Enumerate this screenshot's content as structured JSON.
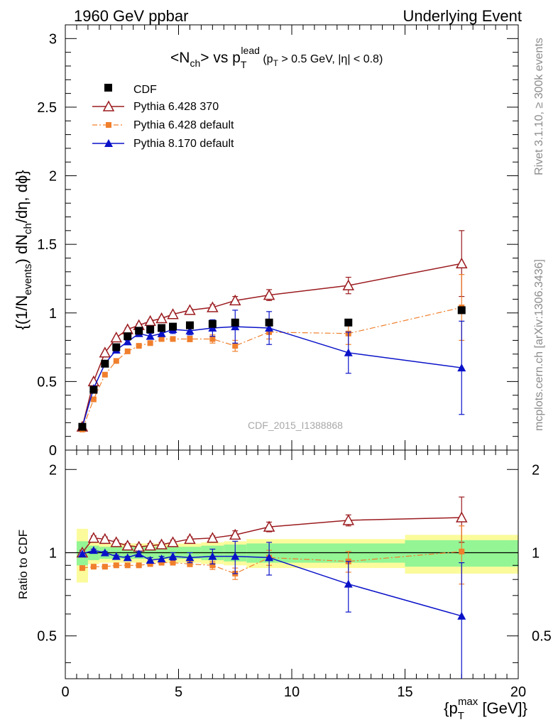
{
  "header": {
    "left": "1960 GeV ppbar",
    "right": "Underlying Event"
  },
  "side": {
    "rivet": "Rivet 3.1.10, ≥ 300k events",
    "mcplots": "mcplots.cern.ch [arXiv:1306.3436]"
  },
  "watermark": "CDF_2015_I1388868",
  "colors": {
    "cdf": "#000000",
    "py6_370": "#9b1b1f",
    "py6_default": "#f07f2c",
    "py8": "#0a12c8",
    "band_inner": "#94f594",
    "band_outer": "#fbfb9b"
  },
  "chart_data": [
    {
      "type": "scatter",
      "title": "<Nch> vs pT lead (pT > 0.5 GeV, |η| < 0.8)",
      "ylabel": "{(1/Nevents) dNch/dη, dφ}",
      "xlim": [
        0,
        20
      ],
      "ylim": [
        0,
        3.1
      ],
      "yticks": [
        "0",
        "0.5",
        "1",
        "1.5",
        "2",
        "2.5",
        "3"
      ],
      "legend": {
        "placement": "top-left",
        "entries": [
          "CDF",
          "Pythia 6.428 370",
          "Pythia 6.428 default",
          "Pythia 8.170 default"
        ]
      },
      "series": [
        {
          "name": "CDF",
          "marker": "square",
          "x": [
            0.75,
            1.25,
            1.75,
            2.25,
            2.75,
            3.25,
            3.75,
            4.25,
            4.75,
            5.5,
            6.5,
            7.5,
            9,
            12.5,
            17.5
          ],
          "y": [
            0.17,
            0.44,
            0.63,
            0.75,
            0.83,
            0.87,
            0.88,
            0.89,
            0.9,
            0.91,
            0.92,
            0.93,
            0.93,
            0.93,
            1.02
          ],
          "err": [
            0.01,
            0.01,
            0.01,
            0.01,
            0.01,
            0.01,
            0.01,
            0.01,
            0.01,
            0.01,
            0.01,
            0.01,
            0.01,
            0.01,
            0.02
          ]
        },
        {
          "name": "Pythia 6.428 370",
          "marker": "open-triangle",
          "line": "solid",
          "x": [
            0.75,
            1.25,
            1.75,
            2.25,
            2.75,
            3.25,
            3.75,
            4.25,
            4.75,
            5.5,
            6.5,
            7.5,
            9,
            12.5,
            17.5
          ],
          "y": [
            0.17,
            0.5,
            0.71,
            0.82,
            0.88,
            0.91,
            0.94,
            0.96,
            0.99,
            1.02,
            1.04,
            1.09,
            1.13,
            1.2,
            1.36
          ],
          "err": [
            0.005,
            0.005,
            0.005,
            0.005,
            0.01,
            0.01,
            0.01,
            0.01,
            0.01,
            0.01,
            0.02,
            0.03,
            0.04,
            0.06,
            0.24
          ]
        },
        {
          "name": "Pythia 6.428 default",
          "marker": "small-square",
          "line": "dashdot",
          "x": [
            0.75,
            1.25,
            1.75,
            2.25,
            2.75,
            3.25,
            3.75,
            4.25,
            4.75,
            5.5,
            6.5,
            7.5,
            9,
            12.5,
            17.5
          ],
          "y": [
            0.15,
            0.37,
            0.55,
            0.65,
            0.72,
            0.76,
            0.78,
            0.81,
            0.81,
            0.81,
            0.81,
            0.76,
            0.86,
            0.85,
            1.04
          ],
          "err": [
            0.005,
            0.005,
            0.005,
            0.005,
            0.005,
            0.01,
            0.01,
            0.01,
            0.01,
            0.02,
            0.03,
            0.04,
            0.05,
            0.08,
            0.24
          ]
        },
        {
          "name": "Pythia 8.170 default",
          "marker": "triangle",
          "line": "solid",
          "x": [
            0.75,
            1.25,
            1.75,
            2.25,
            2.75,
            3.25,
            3.75,
            4.25,
            4.75,
            5.5,
            6.5,
            7.5,
            9,
            12.5,
            17.5
          ],
          "y": [
            0.17,
            0.45,
            0.63,
            0.73,
            0.79,
            0.85,
            0.83,
            0.85,
            0.88,
            0.87,
            0.89,
            0.9,
            0.89,
            0.71,
            0.6
          ],
          "err": [
            0.005,
            0.005,
            0.005,
            0.01,
            0.01,
            0.01,
            0.02,
            0.02,
            0.03,
            0.03,
            0.06,
            0.12,
            0.12,
            0.15,
            0.34
          ]
        }
      ]
    },
    {
      "type": "scatter",
      "title": "",
      "xlabel": "{pT max [GeV]}",
      "ylabel": "Ratio to CDF",
      "xlim": [
        0,
        20
      ],
      "ylim": [
        0.35,
        2.35
      ],
      "xticks": [
        "0",
        "5",
        "10",
        "15",
        "20"
      ],
      "yticks": [
        "0.5",
        "1",
        "2"
      ],
      "reference_line": 1,
      "bands": {
        "edges": [
          0.5,
          1,
          1.5,
          2,
          2.5,
          3,
          3.5,
          4,
          4.5,
          5,
          6,
          7,
          8,
          10,
          15,
          20
        ],
        "inner": [
          0.1,
          0.06,
          0.05,
          0.05,
          0.05,
          0.05,
          0.05,
          0.05,
          0.05,
          0.05,
          0.06,
          0.07,
          0.08,
          0.08,
          0.11
        ],
        "outer": [
          0.22,
          0.09,
          0.08,
          0.08,
          0.08,
          0.08,
          0.08,
          0.08,
          0.08,
          0.08,
          0.09,
          0.1,
          0.12,
          0.12,
          0.16
        ]
      },
      "series": [
        {
          "name": "Pythia 6.428 370",
          "x": [
            0.75,
            1.25,
            1.75,
            2.25,
            2.75,
            3.25,
            3.75,
            4.25,
            4.75,
            5.5,
            6.5,
            7.5,
            9,
            12.5,
            17.5
          ],
          "y": [
            1.0,
            1.13,
            1.12,
            1.09,
            1.06,
            1.05,
            1.06,
            1.07,
            1.09,
            1.12,
            1.13,
            1.16,
            1.24,
            1.31,
            1.34
          ],
          "err": [
            0.02,
            0.02,
            0.02,
            0.02,
            0.02,
            0.02,
            0.02,
            0.02,
            0.02,
            0.02,
            0.02,
            0.04,
            0.05,
            0.06,
            0.25
          ]
        },
        {
          "name": "Pythia 6.428 default",
          "x": [
            0.75,
            1.25,
            1.75,
            2.25,
            2.75,
            3.25,
            3.75,
            4.25,
            4.75,
            5.5,
            6.5,
            7.5,
            9,
            12.5,
            17.5
          ],
          "y": [
            0.88,
            0.89,
            0.89,
            0.9,
            0.9,
            0.9,
            0.91,
            0.92,
            0.92,
            0.91,
            0.9,
            0.84,
            0.96,
            0.93,
            1.01
          ],
          "err": [
            0.01,
            0.01,
            0.01,
            0.01,
            0.01,
            0.01,
            0.01,
            0.01,
            0.01,
            0.02,
            0.03,
            0.04,
            0.06,
            0.08,
            0.24
          ]
        },
        {
          "name": "Pythia 8.170 default",
          "x": [
            0.75,
            1.25,
            1.75,
            2.25,
            2.75,
            3.25,
            3.75,
            4.25,
            4.75,
            5.5,
            6.5,
            7.5,
            9,
            12.5,
            17.5
          ],
          "y": [
            0.99,
            1.02,
            1.0,
            0.97,
            0.96,
            0.99,
            0.94,
            0.95,
            0.97,
            0.96,
            0.97,
            0.97,
            0.96,
            0.77,
            0.59
          ],
          "err": [
            0.01,
            0.01,
            0.01,
            0.01,
            0.01,
            0.02,
            0.02,
            0.02,
            0.03,
            0.04,
            0.06,
            0.13,
            0.13,
            0.16,
            0.33
          ]
        }
      ]
    }
  ]
}
